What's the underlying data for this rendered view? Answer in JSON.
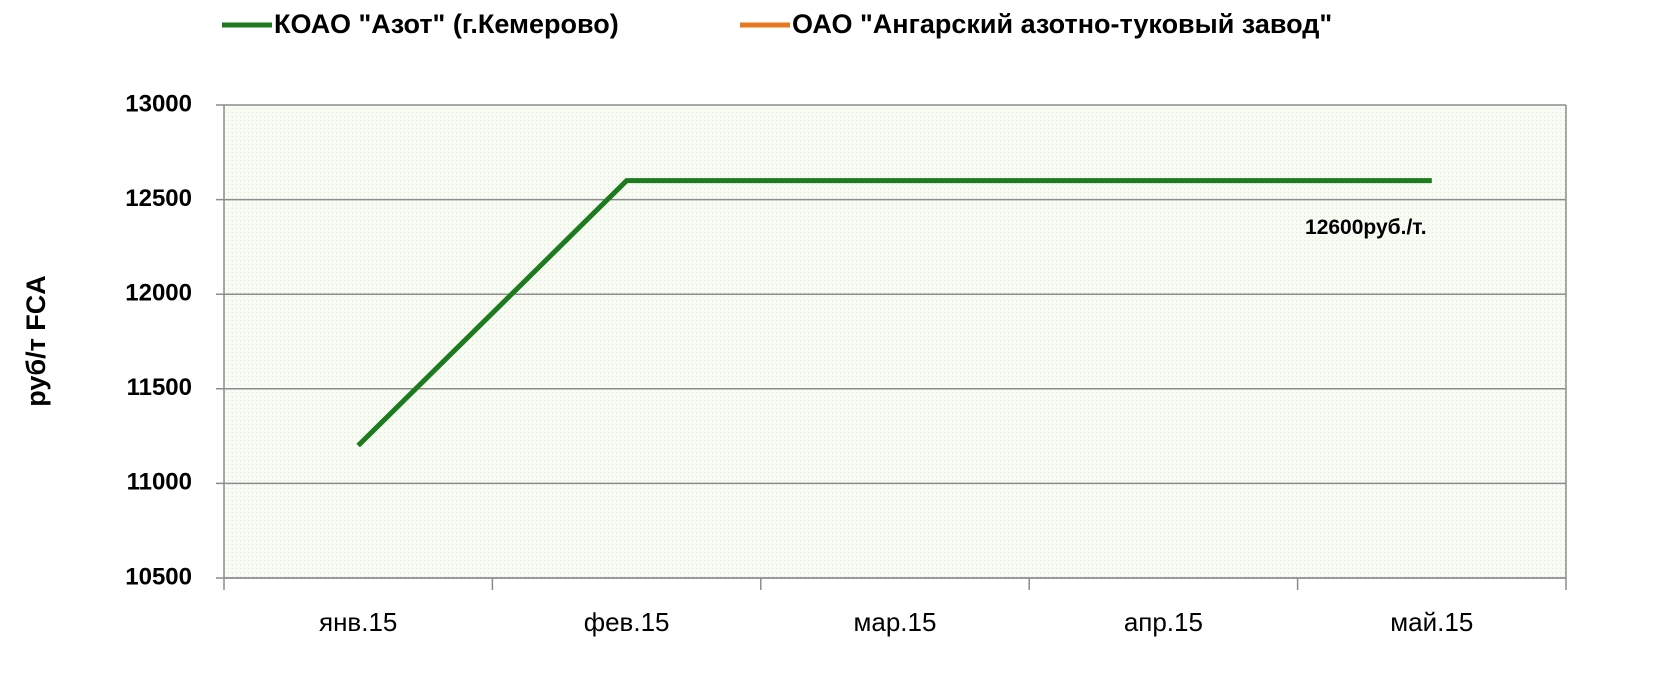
{
  "chart_data": {
    "type": "line",
    "y_label": "руб/т FCA",
    "categories": [
      "янв.15",
      "фев.15",
      "мар.15",
      "апр.15",
      "май.15"
    ],
    "series": [
      {
        "name": "КОАО \"Азот\" (г.Кемерово)",
        "color": "#1e7a1e",
        "values": [
          11200,
          12600,
          12600,
          12600,
          12600
        ],
        "value_labels": [
          null,
          null,
          null,
          null,
          "12600руб./т."
        ]
      },
      {
        "name": "ОАО \"Ангарский азотно-туковый завод\"",
        "color": "#e87722",
        "values": [
          null,
          null,
          null,
          null,
          null
        ]
      }
    ],
    "ylim": [
      10500,
      13000
    ],
    "yticks": [
      10500,
      11000,
      11500,
      12000,
      12500,
      13000
    ],
    "grid": true,
    "legend": "top"
  }
}
